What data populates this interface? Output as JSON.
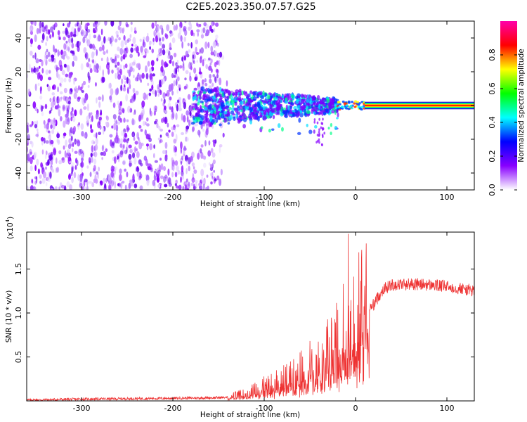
{
  "figure": {
    "title": "C2E5.2023.350.07.57.G25"
  },
  "colorbar": {
    "label": "Normalized spectral amplitude",
    "ticks": [
      0.0,
      0.2,
      0.4,
      0.6,
      0.8
    ],
    "tick_labels": [
      "0.0",
      "0.2",
      "0.4",
      "0.6",
      "0.8"
    ],
    "range": [
      0,
      1
    ],
    "colormap": [
      "#ffffff",
      "#8800ff",
      "#0000ff",
      "#00ffff",
      "#00ff00",
      "#ffff00",
      "#ff0000",
      "#ff00aa"
    ]
  },
  "chart_data": [
    {
      "type": "heatmap",
      "title": "C2E5.2023.350.07.57.G25",
      "xlabel": "Height of straight line (km)",
      "ylabel": "Frequency (Hz)",
      "xlim": [
        -360,
        130
      ],
      "ylim": [
        -50,
        50
      ],
      "xticks": [
        -300,
        -200,
        -100,
        0,
        100
      ],
      "xtick_labels": [
        "-300",
        "-200",
        "-100",
        "0",
        "100"
      ],
      "yticks": [
        -40,
        -20,
        0,
        20,
        40
      ],
      "ytick_labels": [
        "-40",
        "-20",
        "0",
        "20",
        "40"
      ],
      "regions": [
        {
          "x": [
            -360,
            -150
          ],
          "freq": [
            -50,
            50
          ],
          "amplitude": "low",
          "color": "#8800ff"
        },
        {
          "x": [
            -175,
            -20
          ],
          "freq": [
            -10,
            12
          ],
          "amplitude": "medium",
          "color": "#00ffff"
        },
        {
          "x": [
            -20,
            10
          ],
          "freq": [
            -3,
            3
          ],
          "amplitude": "medium-high"
        },
        {
          "x": [
            10,
            130
          ],
          "freq": [
            -1,
            1
          ],
          "amplitude": "high",
          "color": "#ff0000"
        }
      ]
    },
    {
      "type": "line",
      "xlabel": "Height of straight line (km)",
      "ylabel": "SNR (10 * v/v)",
      "yscale_label": "(x10",
      "yscale_exponent": "4",
      "xlim": [
        -360,
        130
      ],
      "ylim": [
        0,
        19200
      ],
      "xticks": [
        -300,
        -200,
        -100,
        0,
        100
      ],
      "xtick_labels": [
        "-300",
        "-200",
        "-100",
        "0",
        "100"
      ],
      "yticks": [
        5000,
        10000,
        15000
      ],
      "ytick_labels": [
        "0.5",
        "1.0",
        "1.5"
      ],
      "series": [
        {
          "color": "#ee3333",
          "x": [
            -360,
            -300,
            -250,
            -200,
            -160,
            -140,
            -120,
            -100,
            -80,
            -60,
            -40,
            -25,
            -15,
            -10,
            -5,
            0,
            10,
            20,
            30,
            40,
            60,
            80,
            100,
            120,
            130
          ],
          "y": [
            100,
            200,
            250,
            300,
            350,
            400,
            800,
            1500,
            2200,
            3000,
            4500,
            5500,
            7000,
            7500,
            8500,
            9000,
            9800,
            11000,
            12700,
            13200,
            13300,
            13200,
            13000,
            12700,
            12500
          ]
        }
      ],
      "annotations": [
        {
          "x": -8,
          "y": 19000,
          "note": "spike"
        }
      ]
    }
  ]
}
